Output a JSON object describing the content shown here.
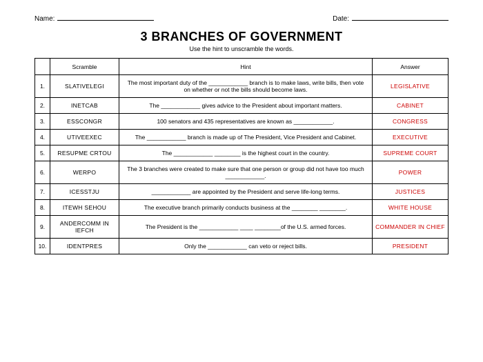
{
  "header": {
    "name_label": "Name:",
    "date_label": "Date:"
  },
  "title": "3 BRANCHES OF GOVERNMENT",
  "instruction": "Use the hint to unscramble the words.",
  "columns": {
    "num": "",
    "scramble": "Scramble",
    "hint": "Hint",
    "answer": "Answer"
  },
  "rows": [
    {
      "n": "1.",
      "scramble": "SLATIVELEGI",
      "hint": "The most important duty of the ____________ branch is to make laws, write bills, then vote on whether or not the bills should become laws.",
      "answer": "LEGISLATIVE"
    },
    {
      "n": "2.",
      "scramble": "INETCAB",
      "hint": "The ____________ gives advice to the President about important matters.",
      "answer": "CABINET"
    },
    {
      "n": "3.",
      "scramble": "ESSCONGR",
      "hint": "100 senators and 435 representatives are known as ____________.",
      "answer": "CONGRESS"
    },
    {
      "n": "4.",
      "scramble": "UTIVEEXEC",
      "hint": "The ____________ branch is made up of The President, Vice President and Cabinet.",
      "answer": "EXECUTIVE"
    },
    {
      "n": "5.",
      "scramble": "RESUPME CRTOU",
      "hint": "The ____________ ________ is the highest court in the country.",
      "answer": "SUPREME COURT"
    },
    {
      "n": "6.",
      "scramble": "WERPO",
      "hint": "The 3 branches were created to make sure that one person or group did not have too much ____________.",
      "answer": "POWER"
    },
    {
      "n": "7.",
      "scramble": "ICESSTJU",
      "hint": "____________ are appointed by the President and serve life-long terms.",
      "answer": "JUSTICES"
    },
    {
      "n": "8.",
      "scramble": "ITEWH SEHOU",
      "hint": "The executive branch primarily conducts business at the ________ ________.",
      "answer": "WHITE HOUSE"
    },
    {
      "n": "9.",
      "scramble": "ANDERCOMM IN IEFCH",
      "hint": "The President is the ____________ ____ ________of the U.S. armed forces.",
      "answer": "COMMANDER IN CHIEF"
    },
    {
      "n": "10.",
      "scramble": "IDENTPRES",
      "hint": "Only the ____________ can veto or reject bills.",
      "answer": "PRESIDENT"
    }
  ],
  "style": {
    "answer_color": "#cc0000",
    "border_color": "#000000",
    "background_color": "#ffffff",
    "title_font": "Comic Sans MS",
    "body_font": "Arial"
  }
}
